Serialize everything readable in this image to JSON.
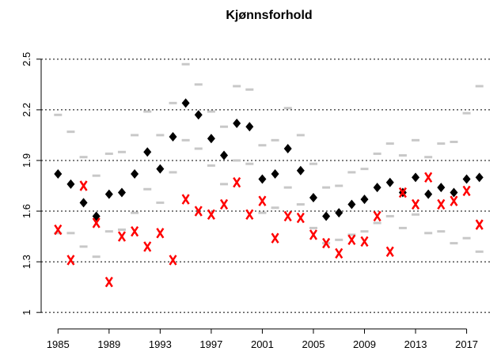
{
  "chart_data": {
    "type": "scatter",
    "title": "Kjønnsforhold",
    "x": [
      1985,
      1986,
      1987,
      1988,
      1989,
      1990,
      1991,
      1992,
      1993,
      1994,
      1995,
      1996,
      1997,
      1998,
      1999,
      2000,
      2001,
      2002,
      2003,
      2004,
      2005,
      2006,
      2007,
      2008,
      2009,
      2010,
      2011,
      2012,
      2013,
      2014,
      2015,
      2016,
      2017,
      2018
    ],
    "series": [
      {
        "color": "#c8c8c8",
        "marker": "dash",
        "values": [
          2.17,
          2.07,
          1.92,
          1.81,
          1.94,
          1.95,
          2.05,
          2.19,
          2.05,
          2.24,
          2.47,
          2.35,
          2.19,
          2.1,
          2.34,
          2.32,
          1.99,
          2.02,
          2.21,
          2.05,
          1.88,
          1.74,
          1.75,
          1.83,
          1.85,
          1.94,
          2.0,
          1.93,
          2.02,
          1.92,
          2.0,
          2.01,
          2.18,
          2.34
        ]
      },
      {
        "color": "#c8c8c8",
        "marker": "dash",
        "values": [
          1.47,
          1.47,
          1.39,
          1.33,
          1.48,
          1.49,
          1.59,
          1.73,
          1.65,
          1.83,
          2.02,
          1.97,
          1.87,
          1.76,
          1.9,
          1.88,
          1.59,
          1.62,
          1.74,
          1.64,
          1.5,
          1.41,
          1.43,
          1.46,
          1.48,
          1.53,
          1.57,
          1.5,
          1.58,
          1.47,
          1.48,
          1.41,
          1.44,
          1.36
        ]
      },
      {
        "color": "#000000",
        "marker": "diamond",
        "values": [
          1.82,
          1.76,
          1.65,
          1.57,
          1.7,
          1.71,
          1.82,
          1.95,
          1.85,
          2.04,
          2.24,
          2.17,
          2.03,
          1.93,
          2.12,
          2.1,
          1.79,
          1.82,
          1.97,
          1.84,
          1.68,
          1.57,
          1.59,
          1.64,
          1.67,
          1.74,
          1.77,
          1.71,
          1.8,
          1.7,
          1.74,
          1.71,
          1.79,
          1.8
        ]
      },
      {
        "color": "#ff0000",
        "marker": "x",
        "values": [
          1.49,
          1.31,
          1.75,
          1.53,
          1.18,
          1.45,
          1.48,
          1.39,
          1.47,
          1.31,
          1.67,
          1.6,
          1.58,
          1.64,
          1.77,
          1.58,
          1.66,
          1.44,
          1.57,
          1.56,
          1.46,
          1.41,
          1.35,
          1.43,
          1.42,
          1.57,
          1.36,
          1.71,
          1.64,
          1.8,
          1.64,
          1.66,
          1.72,
          1.52
        ]
      }
    ],
    "xlim": [
      1984.3,
      2018.7
    ],
    "xticks": [
      1985,
      1989,
      1993,
      1997,
      2001,
      2005,
      2009,
      2013,
      2017
    ],
    "ylim": [
      0.94,
      2.56
    ],
    "yticks": [
      1,
      1.3,
      1.6,
      1.9,
      2.2,
      2.5
    ],
    "grid": true
  }
}
